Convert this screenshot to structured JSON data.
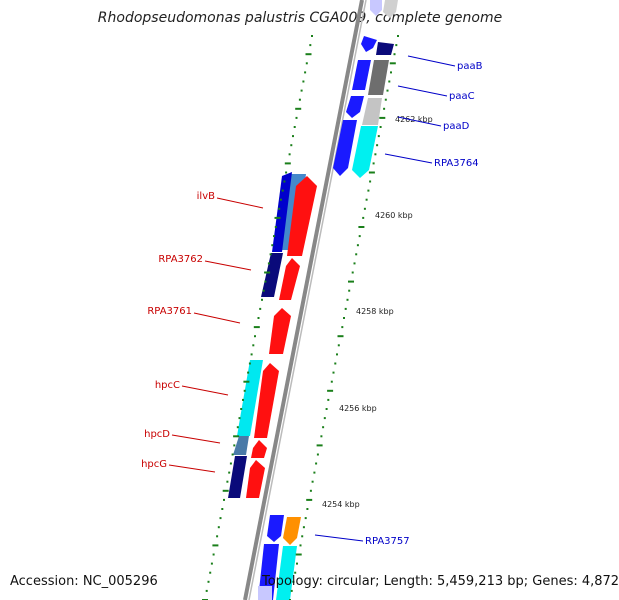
{
  "title": "Rhodopseudomonas palustris CGA009, complete genome",
  "footer": {
    "accession": "Accession: NC_005296",
    "topology": "Topology: circular; Length: 5,459,213 bp; Genes: 4,872"
  },
  "colors": {
    "forward_label": "#0000c8",
    "reverse_label": "#c80000",
    "backbone": "#808080",
    "tick": "#1a7f1a"
  },
  "scale_labels": [
    "4262 kbp",
    "4260 kbp",
    "4258 kbp",
    "4256 kbp",
    "4254 kbp"
  ],
  "gene_labels_forward": [
    "paaB",
    "paaC",
    "paaD",
    "RPA3764",
    "RPA3757"
  ],
  "gene_labels_reverse": [
    "ilvB",
    "RPA3762",
    "RPA3761",
    "hpcC",
    "hpcD",
    "hpcG"
  ]
}
